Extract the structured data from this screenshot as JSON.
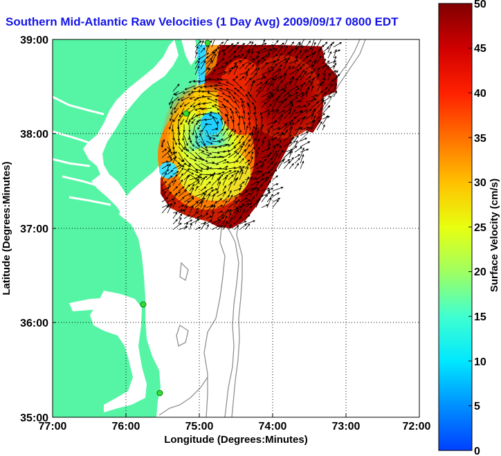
{
  "title": "Southern Mid-Atlantic Raw Velocities (1 Day Avg) 2009/09/17 0800 EDT",
  "axes": {
    "xlabel": "Longitude (Degrees:Minutes)",
    "ylabel": "Latitude (Degrees:Minutes)",
    "xticks": [
      "77:00",
      "76:00",
      "75:00",
      "74:00",
      "73:00",
      "72:00"
    ],
    "yticks": [
      "39:00",
      "38:00",
      "37:00",
      "36:00",
      "35:00"
    ]
  },
  "colorbar": {
    "label": "Surface Velocity (cm/s)",
    "ticks": [
      "50",
      "45",
      "40",
      "35",
      "30",
      "25",
      "20",
      "15",
      "10",
      "5",
      "0"
    ],
    "range": [
      0,
      50
    ]
  },
  "colors": {
    "land": "#55f5a5",
    "water": "#ffffff",
    "title": "#1414e6",
    "bathymetry": "#909090",
    "station": "#33dd33"
  },
  "legend_values": {
    "min_cm_s": 0,
    "max_cm_s": 50
  }
}
